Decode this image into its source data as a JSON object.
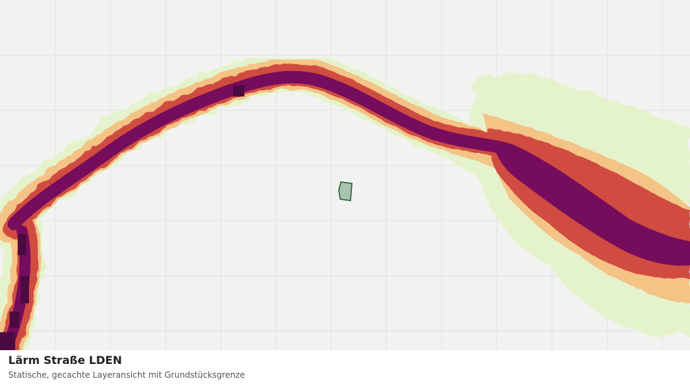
{
  "map": {
    "title": "Lärm Straße LDEN",
    "subtitle": "Statische, gecachte Layeransicht mit Grundstücksgrenze",
    "layer": "noise-road-lden",
    "grid": true,
    "colors": {
      "background": "#f2f3f1",
      "grid": "#dfe1de",
      "band_lowest": "#e5f3cc",
      "band_low": "#f4c386",
      "band_mid": "#d04c3f",
      "band_high": "#750c5c",
      "band_highest": "#4a0a42",
      "parcel_fill": "#a9c3b0",
      "parcel_stroke": "#1f5a2d"
    }
  }
}
